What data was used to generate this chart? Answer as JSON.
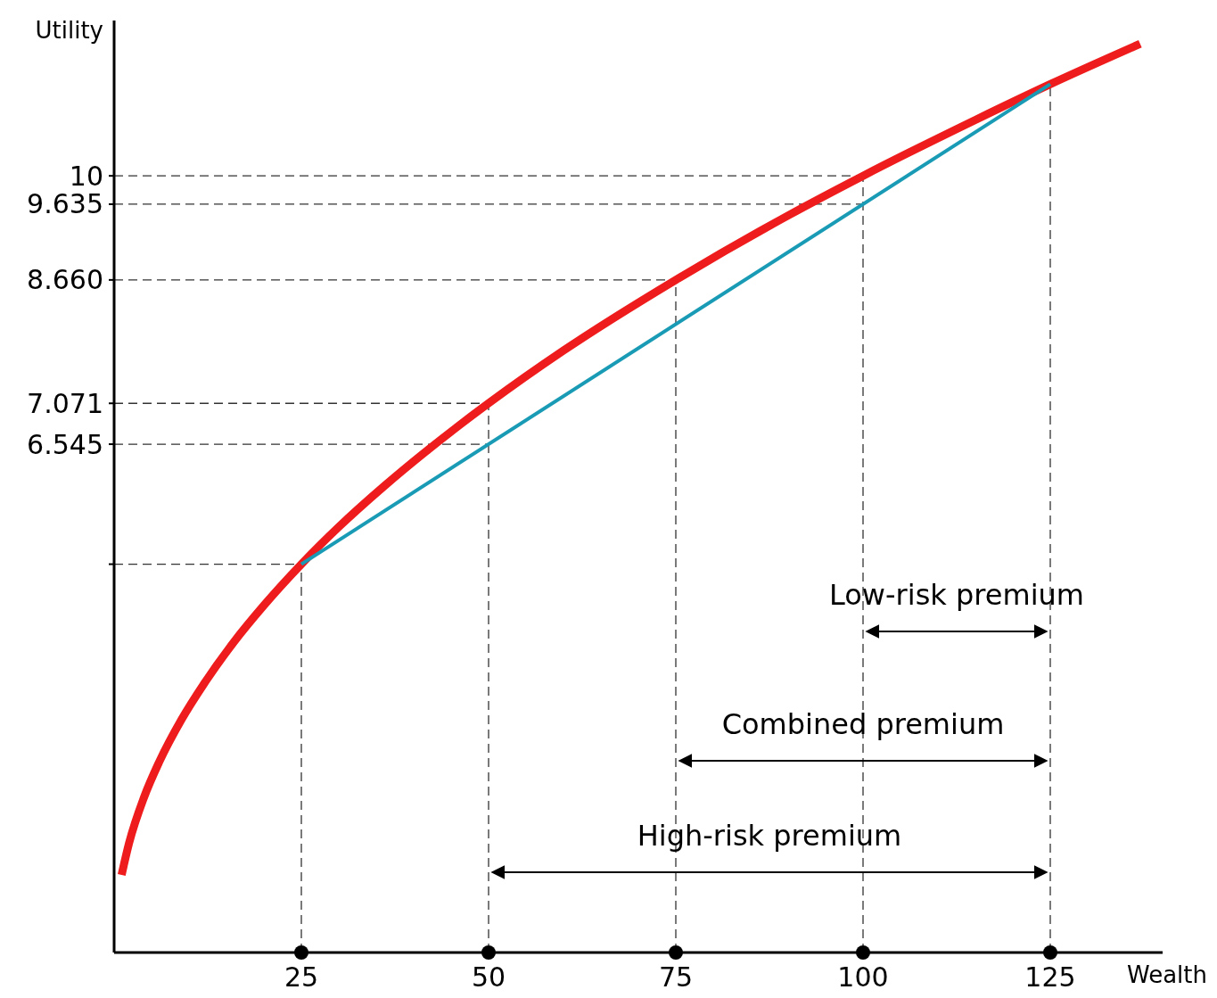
{
  "chart_data": {
    "type": "line",
    "xlabel": "Wealth",
    "ylabel": "Utility",
    "xlim": [
      0,
      140
    ],
    "ylim": [
      0,
      12
    ],
    "xticks": [
      25,
      50,
      75,
      100,
      125
    ],
    "yticks": [
      {
        "value": 5,
        "label": null
      },
      6.545,
      7.071,
      {
        "value": 8.66,
        "label": "8.660"
      },
      9.635,
      10
    ],
    "series": [
      {
        "color": "#ee1c1c",
        "x": [
          1,
          2,
          4,
          6,
          9,
          12,
          16,
          20,
          25,
          30,
          36,
          42,
          50,
          60,
          75,
          90,
          100,
          115,
          125,
          137
        ],
        "values": [
          1,
          1.41,
          2,
          2.45,
          3,
          3.46,
          4,
          4.47,
          5,
          5.48,
          6,
          6.48,
          7.071,
          7.75,
          8.66,
          9.49,
          10,
          10.72,
          11.18,
          11.7
        ]
      },
      {
        "color": "#1a9bb5",
        "x": [
          25,
          125
        ],
        "values": [
          5,
          11.18
        ]
      },
      {
        "type": "scatter",
        "color": "#000000",
        "marker": "circle",
        "x": [
          25,
          50,
          75,
          100,
          125
        ],
        "values": [
          0,
          0,
          0,
          0,
          0
        ]
      }
    ],
    "ref_lines": [
      {
        "axis": "x",
        "value": 25,
        "line_style": "dashed"
      },
      {
        "axis": "x",
        "value": 50,
        "line_style": "dashed"
      },
      {
        "axis": "x",
        "value": 75,
        "line_style": "dashed"
      },
      {
        "axis": "x",
        "value": 100,
        "line_style": "dashed"
      },
      {
        "axis": "x",
        "value": 125,
        "line_style": "dashed"
      },
      {
        "axis": "y",
        "value": 5,
        "line_style": "dashed"
      },
      {
        "axis": "y",
        "value": 6.545,
        "line_style": "dashed"
      },
      {
        "axis": "y",
        "value": 7.071,
        "line_style": "dashed"
      },
      {
        "axis": "y",
        "value": 8.66,
        "line_style": "dashed"
      },
      {
        "axis": "y",
        "value": 9.635,
        "line_style": "dashed"
      },
      {
        "axis": "y",
        "value": 10,
        "line_style": "dashed"
      }
    ],
    "annotations": [
      "Low-risk premium",
      "Combined premium",
      "High-risk premium"
    ],
    "line_style": "solid",
    "grid": false
  }
}
